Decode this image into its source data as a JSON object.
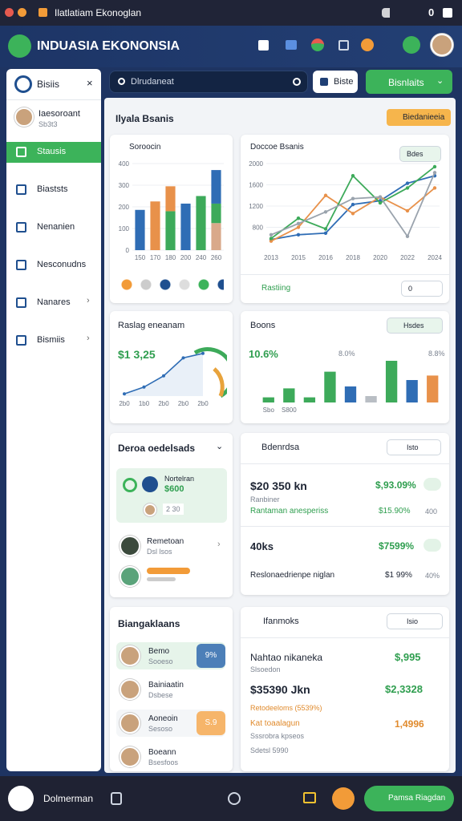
{
  "os_bar": {
    "title": "Ilatlatiam Ekonoglan",
    "status": "0"
  },
  "header": {
    "title": "INDUASIA EKONONSIA"
  },
  "sidebar": {
    "title": "Bisiis",
    "profile": {
      "name": "Iaesoroant",
      "sub": "Sb3t3"
    },
    "menu": [
      "Stausis",
      "Biaststs",
      "Nenanien",
      "Nesconudns",
      "Nanares",
      "Bismiis"
    ]
  },
  "toolbar": {
    "search": "Dlrudaneat",
    "button": "Biste",
    "primary_button": "Bisnlaits"
  },
  "main": {
    "title": "Ilyala Bsanis",
    "badge": "Biedanieeia"
  },
  "bar_card": {
    "title": "Soroocin"
  },
  "line_card": {
    "title": "Doccoe Bsanis",
    "dropdown": "Bdes",
    "footer": "Rastiing",
    "footer_button": "0"
  },
  "area_card": {
    "title": "Raslag eneanam",
    "value": "$1 3,25"
  },
  "bars_card": {
    "title": "Boons",
    "dropdown": "Hsdes",
    "labels": [
      "10.6%",
      "8.0%",
      "8.8%"
    ]
  },
  "deals_card": {
    "title": "Deroa oedelsads",
    "highlight": {
      "name": "Nortelran",
      "value": "$600",
      "chip": "2 30"
    },
    "rows": [
      {
        "name": "Remetoan",
        "sub": "Dsl lsos"
      }
    ]
  },
  "stats_card": {
    "title": "Bdenrdsa",
    "dropdown": "Isto",
    "rows": [
      {
        "value": "$20 350 kn",
        "change": "$,93.09%",
        "label": "Ranbiner",
        "sub": "Rantaman anesperiss",
        "sub_change": "$15.90%",
        "sub_value": "400"
      },
      {
        "value": "40ks",
        "change": "$7599%",
        "label": "Reslonaedrienpe niglan",
        "sub_change": "$1 99%",
        "sub_value": "40%"
      }
    ]
  },
  "list_card": {
    "title": "Biangaklaans",
    "items": [
      {
        "name": "Bemo",
        "sub": "Sooeso",
        "chip": "9%"
      },
      {
        "name": "Bainiaatin",
        "sub": "Dsbese"
      },
      {
        "name": "Aoneoin",
        "sub": "Sesoso",
        "chip": "S.9"
      },
      {
        "name": "Boeann",
        "sub": "Bsesfoos"
      }
    ]
  },
  "detail_card": {
    "title": "Ifanmoks",
    "dropdown": "Isio",
    "name": "Nahtao nikaneka",
    "name_value": "$,995",
    "sub": "Slsoedon",
    "amount": "$35390 Jkn",
    "amount_value": "$2,3328",
    "note": "Retodeeloms (5539%)",
    "line": "Kat toaalagun",
    "line_value": "1,4996",
    "line_sub": "Sssrobra kpseos",
    "line_sub2": "Sdetsl 5990"
  },
  "bottom_bar": {
    "label": "Dolmerman",
    "button": "Pamsa Riagdan"
  },
  "charts": {
    "bar_chart": {
      "type": "stacked-bar",
      "categories": [
        "150",
        "170",
        "180",
        "200",
        "240",
        "260"
      ],
      "ylim": [
        0,
        400
      ],
      "yticks": [
        0,
        100,
        200,
        300,
        400
      ],
      "stacks": [
        [
          {
            "value": 186,
            "color": "#2f6db5"
          }
        ],
        [
          {
            "value": 225,
            "color": "#e8914a"
          }
        ],
        [
          {
            "value": 180,
            "color": "#3daa5a"
          },
          {
            "value": 115,
            "color": "#e8914a"
          }
        ],
        [
          {
            "value": 215,
            "color": "#2f6db5"
          }
        ],
        [
          {
            "value": 250,
            "color": "#3daa5a"
          }
        ],
        [
          {
            "value": 125,
            "color": "#d9a98a"
          },
          {
            "value": 90,
            "color": "#3daa5a"
          },
          {
            "value": 155,
            "color": "#2f6db5"
          }
        ]
      ]
    },
    "line_chart": {
      "type": "line",
      "categories": [
        "2013",
        "2015",
        "2016",
        "2018",
        "2020",
        "2022",
        "2024"
      ],
      "ylim": [
        400,
        2000
      ],
      "yticks": [
        800,
        1200,
        1600,
        2000
      ],
      "series": [
        {
          "color": "#2f6db5",
          "values": [
            570,
            660,
            690,
            1230,
            1300,
            1630,
            1770
          ]
        },
        {
          "color": "#e8914a",
          "values": [
            540,
            800,
            1400,
            1060,
            1370,
            1110,
            1540
          ]
        },
        {
          "color": "#3daa5a",
          "values": [
            590,
            970,
            770,
            1770,
            1260,
            1540,
            1940
          ]
        },
        {
          "color": "#9aa3ad",
          "values": [
            660,
            870,
            1090,
            1340,
            1370,
            630,
            1830
          ]
        }
      ]
    },
    "area_chart": {
      "type": "area",
      "categories": [
        "2b0",
        "1b0",
        "2b0",
        "2b0",
        "2b0"
      ],
      "ylim": [
        0,
        100
      ],
      "color": "#2f6db5",
      "values": [
        5,
        20,
        45,
        85,
        95
      ]
    },
    "bar_chart_2": {
      "type": "bar",
      "categories": [
        "Sbo",
        "S800",
        null,
        null,
        null,
        null,
        null,
        null,
        null
      ],
      "ylim": [
        0,
        70
      ],
      "colors": [
        "#3daa5a",
        "#3daa5a",
        "#3daa5a",
        "#3daa5a",
        "#2f6db5",
        "#b9bec4",
        "#3daa5a",
        "#2f6db5",
        "#e8914a"
      ],
      "values": [
        8,
        22,
        8,
        48,
        25,
        10,
        65,
        35,
        42
      ]
    }
  }
}
